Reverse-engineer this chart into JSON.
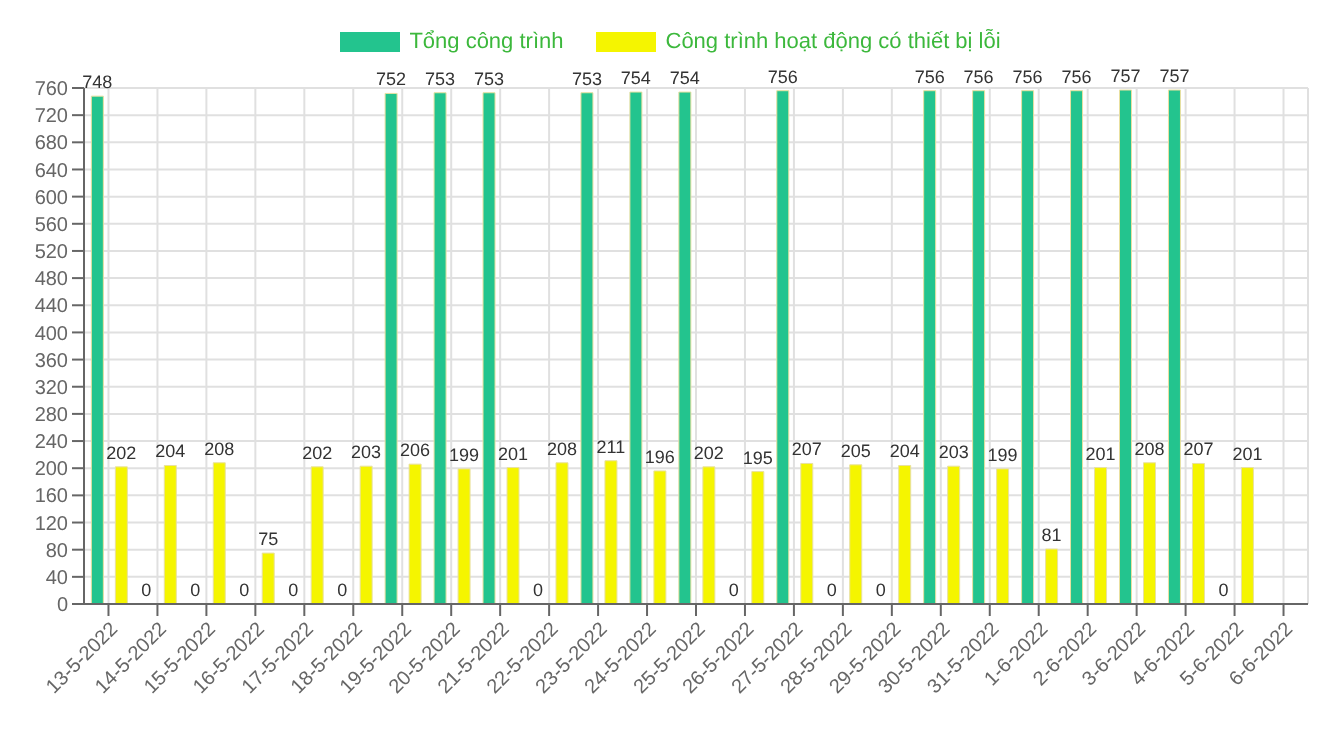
{
  "chart_data": {
    "type": "bar",
    "categories": [
      "13-5-2022",
      "14-5-2022",
      "15-5-2022",
      "16-5-2022",
      "17-5-2022",
      "18-5-2022",
      "19-5-2022",
      "20-5-2022",
      "21-5-2022",
      "22-5-2022",
      "23-5-2022",
      "24-5-2022",
      "25-5-2022",
      "26-5-2022",
      "27-5-2022",
      "28-5-2022",
      "29-5-2022",
      "30-5-2022",
      "31-5-2022",
      "1-6-2022",
      "2-6-2022",
      "3-6-2022",
      "4-6-2022",
      "5-6-2022",
      "6-6-2022"
    ],
    "series": [
      {
        "name": "Tổng công trình",
        "color": "#23c48e",
        "values": [
          748,
          0,
          0,
          0,
          0,
          0,
          752,
          753,
          753,
          0,
          753,
          754,
          754,
          0,
          756,
          0,
          0,
          756,
          756,
          756,
          756,
          757,
          757,
          0,
          null
        ]
      },
      {
        "name": "Công trình hoạt động có thiết bị lỗi",
        "color": "#f5f500",
        "values": [
          202,
          204,
          208,
          75,
          202,
          203,
          206,
          199,
          201,
          208,
          211,
          196,
          202,
          195,
          207,
          205,
          204,
          203,
          199,
          81,
          201,
          208,
          207,
          201,
          null
        ]
      }
    ],
    "ylim": [
      0,
      760
    ],
    "yticks": [
      0,
      40,
      80,
      120,
      160,
      200,
      240,
      280,
      320,
      360,
      400,
      440,
      480,
      520,
      560,
      600,
      640,
      680,
      720,
      760
    ],
    "grid": true,
    "legend": "top",
    "data_labels": true
  }
}
